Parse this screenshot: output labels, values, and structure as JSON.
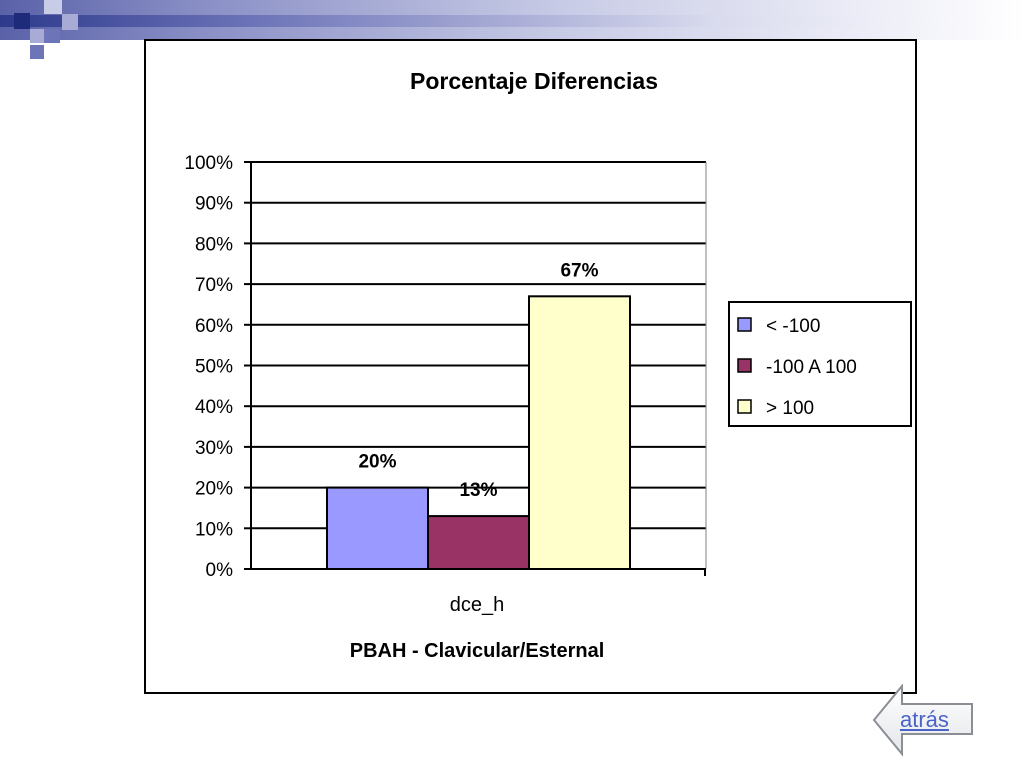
{
  "nav": {
    "back_label": "atrás"
  },
  "colors": {
    "series_1": "#9999ff",
    "series_2": "#993366",
    "series_3": "#ffffcc",
    "header_band": "#2d3a8c",
    "link": "#4a63c9"
  },
  "chart_data": {
    "type": "bar",
    "title": "Porcentaje Diferencias",
    "xlabel": "PBAH - Clavicular/Esternal",
    "ylabel": "",
    "categories": [
      "dce_h"
    ],
    "ylim": [
      0,
      100
    ],
    "yticks": [
      "0%",
      "10%",
      "20%",
      "30%",
      "40%",
      "50%",
      "60%",
      "70%",
      "80%",
      "90%",
      "100%"
    ],
    "grid": true,
    "legend_position": "right",
    "series": [
      {
        "name": "< -100",
        "values": [
          20
        ],
        "label": "20%",
        "color": "#9999ff"
      },
      {
        "name": "-100 A 100",
        "values": [
          13
        ],
        "label": "13%",
        "color": "#993366"
      },
      {
        "name": "> 100",
        "values": [
          67
        ],
        "label": "67%",
        "color": "#ffffcc"
      }
    ]
  }
}
